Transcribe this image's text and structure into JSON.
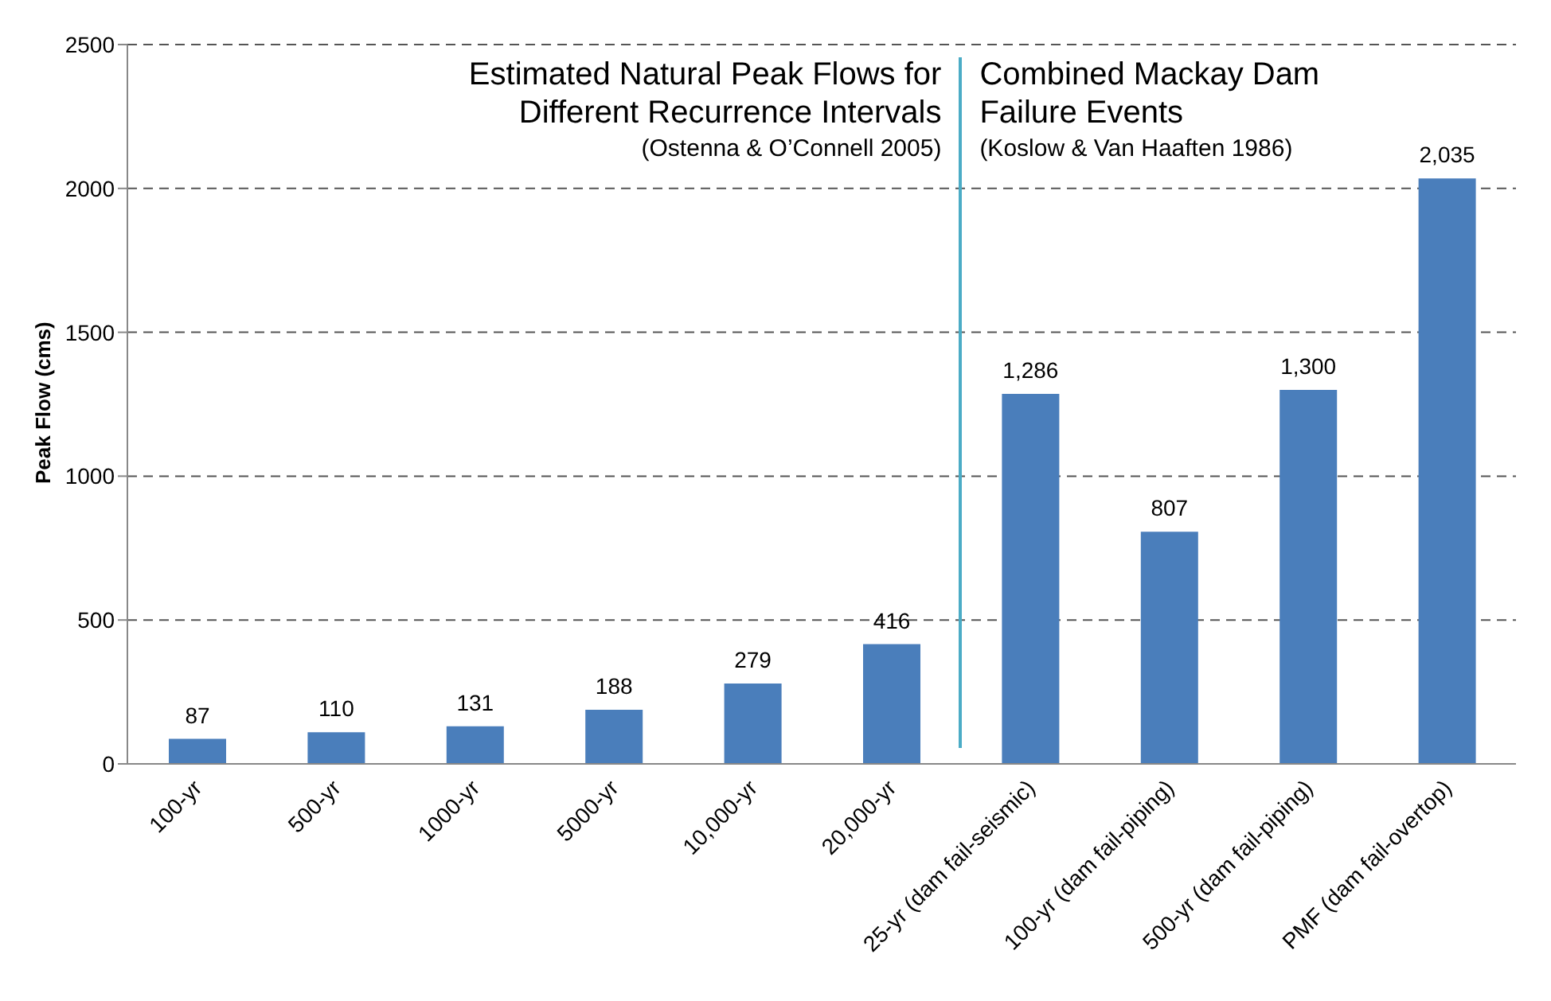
{
  "chart_data": {
    "type": "bar",
    "ylabel": "Peak Flow (cms)",
    "categories": [
      "100-yr",
      "500-yr",
      "1000-yr",
      "5000-yr",
      "10,000-yr",
      "20,000-yr",
      "25-yr (dam fail-seismic)",
      "100-yr (dam fail-piping)",
      "500-yr (dam fail-piping)",
      "PMF (dam fail-overtop)"
    ],
    "values": [
      87,
      110,
      131,
      188,
      279,
      416,
      1286,
      807,
      1300,
      2035
    ],
    "value_labels": [
      "87",
      "110",
      "131",
      "188",
      "279",
      "416",
      "1,286",
      "807",
      "1,300",
      "2,035"
    ],
    "color": "#4a7ebb",
    "ref_lines": [
      {
        "axis": "x",
        "value": "25-yr (dam fail-seismic)",
        "color": "#4bacc6"
      }
    ],
    "ylim": [
      0,
      2500
    ],
    "yticks": [
      0,
      500,
      1000,
      1500,
      2000,
      2500
    ],
    "grid": "y",
    "annotations": [
      "Estimated Natural Peak Flows for Different Recurrence Intervals",
      "(Ostenna & O’Connell 2005)",
      "Combined Mackay Dam Failure Events",
      "(Koslow & Van Haaften 1986)"
    ]
  }
}
